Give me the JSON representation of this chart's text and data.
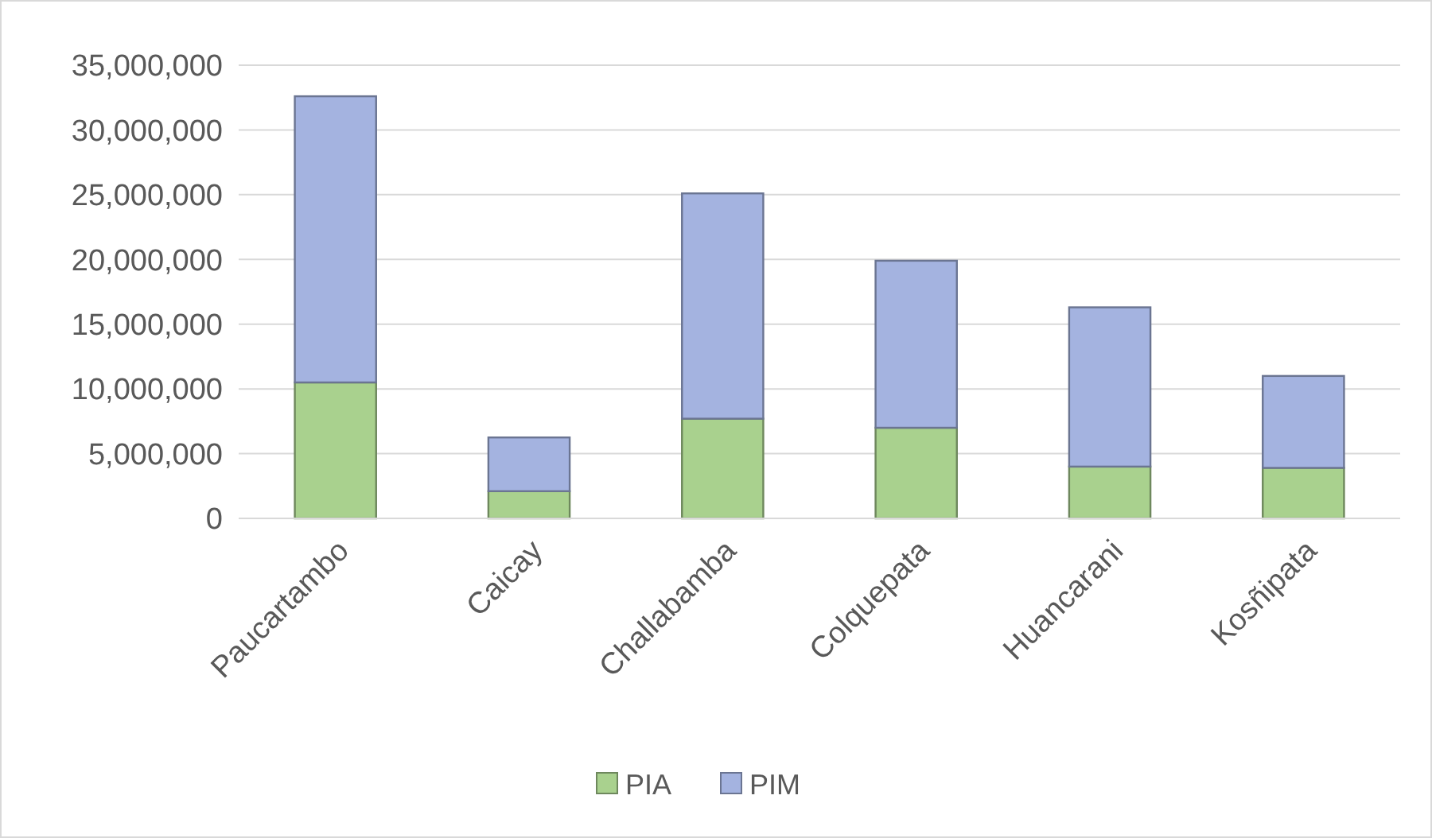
{
  "chart_data": {
    "type": "bar",
    "stacked": true,
    "categories": [
      "Paucartambo",
      "Caicay",
      "Challabamba",
      "Colquepata",
      "Huancarani",
      "Kosñipata"
    ],
    "series": [
      {
        "name": "PIA",
        "color": "#a9d18e",
        "values": [
          10500000,
          2100000,
          7700000,
          7000000,
          4000000,
          3900000
        ]
      },
      {
        "name": "PIM",
        "color": "#a4b3e0",
        "values": [
          22100000,
          4150000,
          17400000,
          12900000,
          12300000,
          7100000
        ]
      }
    ],
    "ylim": [
      0,
      35000000
    ],
    "yticks": [
      {
        "value": 0,
        "label": "0"
      },
      {
        "value": 5000000,
        "label": "5,000,000"
      },
      {
        "value": 10000000,
        "label": "10,000,000"
      },
      {
        "value": 15000000,
        "label": "15,000,000"
      },
      {
        "value": 20000000,
        "label": "20,000,000"
      },
      {
        "value": 25000000,
        "label": "25,000,000"
      },
      {
        "value": 30000000,
        "label": "30,000,000"
      },
      {
        "value": 35000000,
        "label": "35,000,000"
      }
    ],
    "grid": "y",
    "legend": "bottom"
  }
}
